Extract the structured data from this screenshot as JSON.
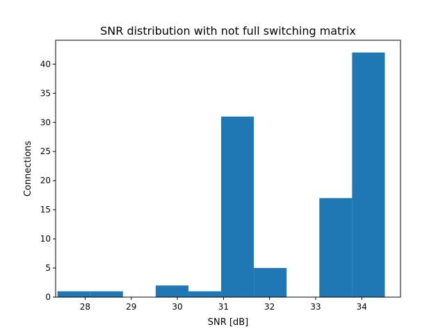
{
  "chart_data": {
    "type": "bar",
    "title": "SNR distribution with not full switching matrix",
    "xlabel": "SNR [dB]",
    "ylabel": "Connections",
    "xlim": [
      27.36,
      34.84
    ],
    "ylim": [
      0,
      44.1
    ],
    "xticks": [
      28,
      29,
      30,
      31,
      32,
      33,
      34
    ],
    "yticks": [
      0,
      5,
      10,
      15,
      20,
      25,
      30,
      35,
      40
    ],
    "bin_edges": [
      27.4,
      28.11,
      28.82,
      29.53,
      30.24,
      30.95,
      31.66,
      32.37,
      33.08,
      33.79,
      34.5
    ],
    "values": [
      1,
      1,
      0,
      2,
      1,
      31,
      5,
      0,
      17,
      42
    ],
    "bar_color": "#1f77b4",
    "grid": false
  }
}
